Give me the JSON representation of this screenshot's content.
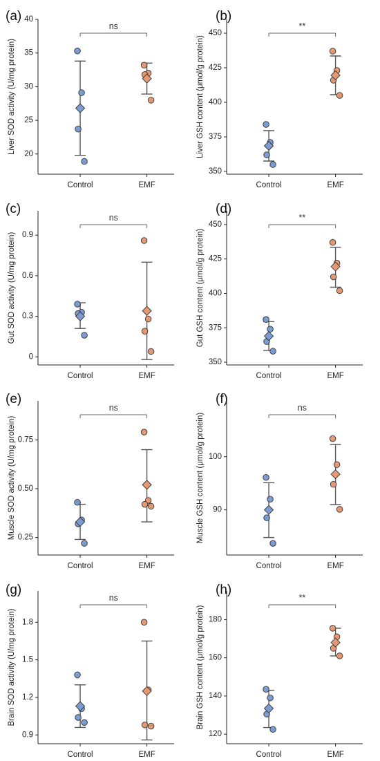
{
  "colors": {
    "control": "#7b9bd1",
    "emf": "#e49874",
    "error_bar": "#555555",
    "marker_stroke": "#333333",
    "sig_line": "#666666"
  },
  "chart_data": [
    {
      "panel": "(a)",
      "type": "scatter",
      "ylabel": "Liver SOD activity (U/mg protein)",
      "ylim": [
        17,
        40
      ],
      "yticks": [
        20,
        25,
        30,
        35,
        40
      ],
      "categories": [
        "Control",
        "EMF"
      ],
      "groups": [
        {
          "name": "Control",
          "points": [
            35.3,
            29.1,
            23.7,
            18.9
          ],
          "mean": 26.8,
          "err_low": 19.8,
          "err_high": 33.8
        },
        {
          "name": "EMF",
          "points": [
            33.2,
            32.0,
            31.8,
            28.0
          ],
          "mean": 31.2,
          "err_low": 28.9,
          "err_high": 33.5
        }
      ],
      "significance": "ns"
    },
    {
      "panel": "(b)",
      "type": "scatter",
      "ylabel": "Liver GSH content (μmol/g protein)",
      "ylim": [
        348,
        460
      ],
      "yticks": [
        350,
        375,
        400,
        425,
        450
      ],
      "categories": [
        "Control",
        "EMF"
      ],
      "groups": [
        {
          "name": "Control",
          "points": [
            384,
            371,
            362,
            355
          ],
          "mean": 368.5,
          "err_low": 357.5,
          "err_high": 379.5
        },
        {
          "name": "EMF",
          "points": [
            437,
            423,
            416,
            405
          ],
          "mean": 419.5,
          "err_low": 405.5,
          "err_high": 433.5
        }
      ],
      "significance": "**"
    },
    {
      "panel": "(c)",
      "type": "scatter",
      "ylabel": "Gut SOD activity (U/mg protein)",
      "ylim": [
        -0.06,
        1.08
      ],
      "yticks": [
        0.0,
        0.3,
        0.6,
        0.9
      ],
      "categories": [
        "Control",
        "EMF"
      ],
      "groups": [
        {
          "name": "Control",
          "points": [
            0.39,
            0.33,
            0.32,
            0.16
          ],
          "mean": 0.3,
          "err_low": 0.21,
          "err_high": 0.4
        },
        {
          "name": "EMF",
          "points": [
            0.86,
            0.28,
            0.19,
            0.04
          ],
          "mean": 0.34,
          "err_low": -0.02,
          "err_high": 0.7
        }
      ],
      "significance": "ns"
    },
    {
      "panel": "(d)",
      "type": "scatter",
      "ylabel": "Gut GSH content (μmol/g protein)",
      "ylim": [
        348,
        460
      ],
      "yticks": [
        350,
        375,
        400,
        425,
        450
      ],
      "categories": [
        "Control",
        "EMF"
      ],
      "groups": [
        {
          "name": "Control",
          "points": [
            381,
            374,
            365,
            358
          ],
          "mean": 369,
          "err_low": 358.5,
          "err_high": 379.5
        },
        {
          "name": "EMF",
          "points": [
            437,
            422,
            412,
            402
          ],
          "mean": 419.5,
          "err_low": 404.5,
          "err_high": 433.5
        }
      ],
      "significance": "**"
    },
    {
      "panel": "(e)",
      "type": "scatter",
      "ylabel": "Muscle SOD activity (U/mg protein)",
      "ylim": [
        0.16,
        0.95
      ],
      "yticks": [
        0.25,
        0.5,
        0.75
      ],
      "ytick_labels": [
        "0.25",
        "0.50",
        "0.75"
      ],
      "categories": [
        "Control",
        "EMF"
      ],
      "groups": [
        {
          "name": "Control",
          "points": [
            0.43,
            0.34,
            0.32,
            0.22
          ],
          "mean": 0.33,
          "err_low": 0.24,
          "err_high": 0.42
        },
        {
          "name": "EMF",
          "points": [
            0.79,
            0.44,
            0.42,
            0.41
          ],
          "mean": 0.52,
          "err_low": 0.33,
          "err_high": 0.7
        }
      ],
      "significance": "ns"
    },
    {
      "panel": "(f)",
      "type": "scatter",
      "ylabel": "Muscle GSH content (μmol/g protein)",
      "ylim": [
        81.5,
        110.5
      ],
      "yticks": [
        90,
        100
      ],
      "categories": [
        "Control",
        "EMF"
      ],
      "groups": [
        {
          "name": "Control",
          "points": [
            96.1,
            92.0,
            88.5,
            83.7
          ],
          "mean": 90.0,
          "err_low": 84.8,
          "err_high": 95.1
        },
        {
          "name": "EMF",
          "points": [
            103.4,
            98.5,
            94.8,
            90.1
          ],
          "mean": 96.7,
          "err_low": 91.0,
          "err_high": 102.3
        }
      ],
      "significance": "ns"
    },
    {
      "panel": "(g)",
      "type": "scatter",
      "ylabel": "Brain SOD activity (U/mg protein)",
      "ylim": [
        0.83,
        2.05
      ],
      "yticks": [
        0.9,
        1.2,
        1.5,
        1.8
      ],
      "categories": [
        "Control",
        "EMF"
      ],
      "groups": [
        {
          "name": "Control",
          "points": [
            1.38,
            1.11,
            1.04,
            1.0
          ],
          "mean": 1.13,
          "err_low": 0.96,
          "err_high": 1.3
        },
        {
          "name": "EMF",
          "points": [
            1.8,
            1.26,
            0.98,
            0.97
          ],
          "mean": 1.25,
          "err_low": 0.86,
          "err_high": 1.65
        }
      ],
      "significance": "ns"
    },
    {
      "panel": "(h)",
      "type": "scatter",
      "ylabel": "Brain GSH content (μmol/g protein)",
      "ylim": [
        115,
        195
      ],
      "yticks": [
        120,
        140,
        160,
        180
      ],
      "categories": [
        "Control",
        "EMF"
      ],
      "groups": [
        {
          "name": "Control",
          "points": [
            143.5,
            139,
            130.5,
            122.5
          ],
          "mean": 133.5,
          "err_low": 123.5,
          "err_high": 143.0
        },
        {
          "name": "EMF",
          "points": [
            175.5,
            171,
            165,
            161
          ],
          "mean": 168,
          "err_low": 161,
          "err_high": 175.5
        }
      ],
      "significance": "**"
    }
  ]
}
